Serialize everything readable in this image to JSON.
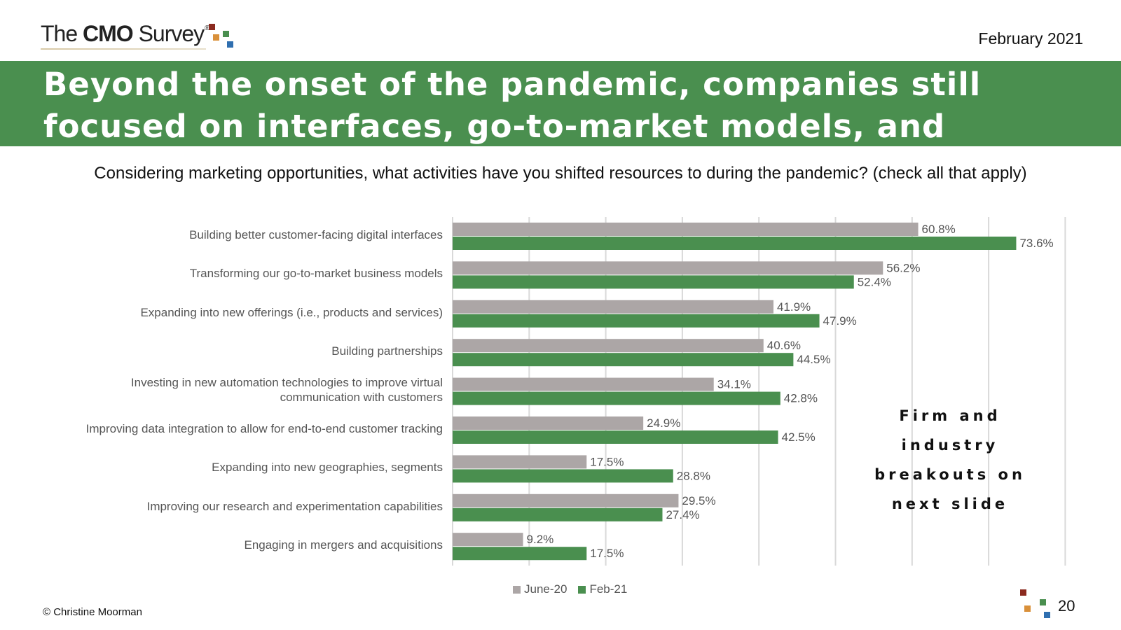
{
  "header": {
    "logo_text_prefix": "The ",
    "logo_text_bold": "CMO",
    "logo_text_suffix": " Survey",
    "logo_registered": "®",
    "date": "February 2021"
  },
  "banner": {
    "title": "Beyond the onset of the pandemic, companies still focused on interfaces, go-to-market models, and expansion"
  },
  "question": "Considering marketing opportunities, what activities have you shifted resources to during the pandemic? (check all that apply)",
  "callout": {
    "lines": [
      "Firm and",
      "industry",
      "breakouts on",
      "next slide"
    ]
  },
  "footer": {
    "copyright": "© Christine Moorman",
    "page_number": "20"
  },
  "colors": {
    "banner": "#4a8f4f",
    "june": "#aca6a6",
    "feb": "#4a8f4f",
    "grid": "#d9d9d9",
    "logo_dots": [
      "#8b2a1f",
      "#d9903a",
      "#4a8f4f",
      "#2f6fb0"
    ]
  },
  "chart_data": {
    "type": "bar",
    "orientation": "horizontal",
    "categories": [
      "Building better customer-facing digital interfaces",
      "Transforming our go-to-market business models",
      "Expanding into new offerings (i.e., products and services)",
      "Building partnerships",
      "Investing in new automation technologies to improve virtual communication with customers",
      "Improving data integration to allow for end-to-end customer tracking",
      "Expanding into new geographies, segments",
      "Improving our research and experimentation capabilities",
      "Engaging in mergers and acquisitions"
    ],
    "category_lines": [
      [
        "Building better customer-facing digital interfaces"
      ],
      [
        "Transforming our go-to-market business models"
      ],
      [
        "Expanding into new offerings (i.e., products and services)"
      ],
      [
        "Building partnerships"
      ],
      [
        "Investing in new automation technologies to improve virtual",
        "communication with customers"
      ],
      [
        "Improving data integration to allow for end-to-end customer tracking"
      ],
      [
        "Expanding into new geographies, segments"
      ],
      [
        "Improving our research and experimentation capabilities"
      ],
      [
        "Engaging in mergers and acquisitions"
      ]
    ],
    "series": [
      {
        "name": "June-20",
        "values": [
          60.8,
          56.2,
          41.9,
          40.6,
          34.1,
          24.9,
          17.5,
          29.5,
          9.2
        ],
        "labels": [
          "60.8%",
          "56.2%",
          "41.9%",
          "40.6%",
          "34.1%",
          "24.9%",
          "17.5%",
          "29.5%",
          "9.2%"
        ]
      },
      {
        "name": "Feb-21",
        "values": [
          73.6,
          52.4,
          47.9,
          44.5,
          42.8,
          42.5,
          28.8,
          27.4,
          17.5
        ],
        "labels": [
          "73.6%",
          "52.4%",
          "47.9%",
          "44.5%",
          "42.8%",
          "42.5%",
          "28.8%",
          "27.4%",
          "17.5%"
        ]
      }
    ],
    "xlim": [
      0,
      80
    ],
    "gridlines": true,
    "legend_position": "bottom"
  }
}
